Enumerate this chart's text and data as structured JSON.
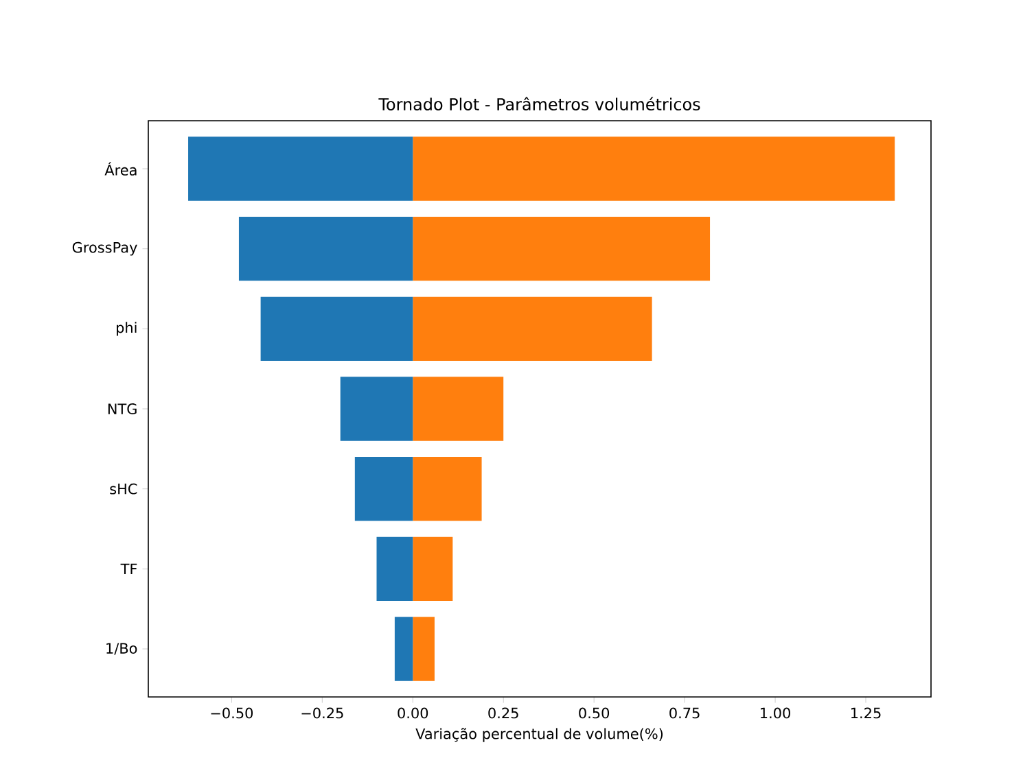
{
  "chart_data": {
    "type": "bar",
    "orientation": "horizontal",
    "stacked": true,
    "title": "Tornado Plot - Parâmetros volumétricos",
    "xlabel": "Variação percentual de volume(%)",
    "categories": [
      "Área",
      "GrossPay",
      "phi",
      "NTG",
      "sHC",
      "TF",
      "1/Bo"
    ],
    "series": [
      {
        "color": "#1f77b4",
        "values": [
          -0.62,
          -0.48,
          -0.42,
          -0.2,
          -0.16,
          -0.1,
          -0.05
        ]
      },
      {
        "color": "#ff7f0e",
        "values": [
          1.33,
          0.82,
          0.66,
          0.25,
          0.19,
          0.11,
          0.06
        ]
      }
    ],
    "xlim": [
      -0.73,
      1.43
    ],
    "xticks": [
      {
        "value": -0.5,
        "label": "−0.50"
      },
      {
        "value": -0.25,
        "label": "−0.25"
      },
      {
        "value": 0,
        "label": "0.00"
      },
      {
        "value": 0.25,
        "label": "0.25"
      },
      {
        "value": 0.5,
        "label": "0.50"
      },
      {
        "value": 0.75,
        "label": "0.75"
      },
      {
        "value": 1,
        "label": "1.00"
      },
      {
        "value": 1.25,
        "label": "1.25"
      }
    ]
  }
}
